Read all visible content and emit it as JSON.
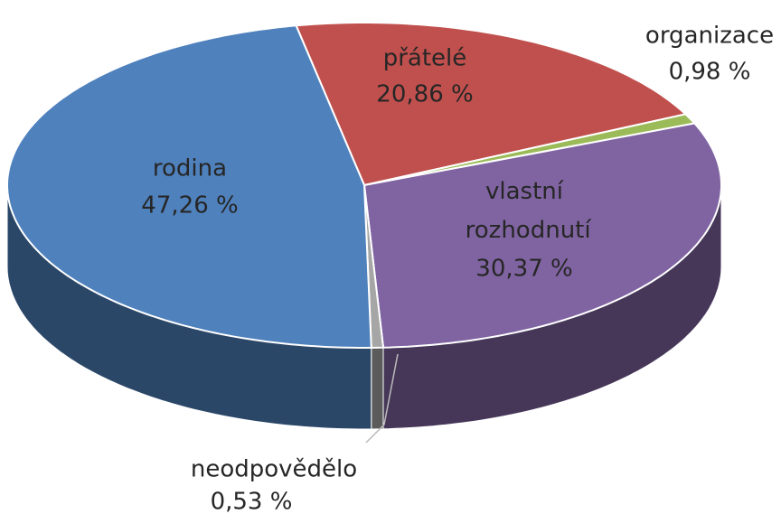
{
  "chart_data": {
    "type": "pie",
    "categories": [
      "přátelé",
      "organizace",
      "vlastní rozhodnutí",
      "neodpovědělo",
      "rodina"
    ],
    "values": [
      20.86,
      0.98,
      30.37,
      0.53,
      47.26
    ],
    "value_labels": [
      "20,86 %",
      "0,98 %",
      "30,37 %",
      "0,53 %",
      "47,26 %"
    ],
    "colors": [
      "#c0504d",
      "#9bbb59",
      "#8064a2",
      "#a6a6a6",
      "#4f81bd"
    ]
  }
}
